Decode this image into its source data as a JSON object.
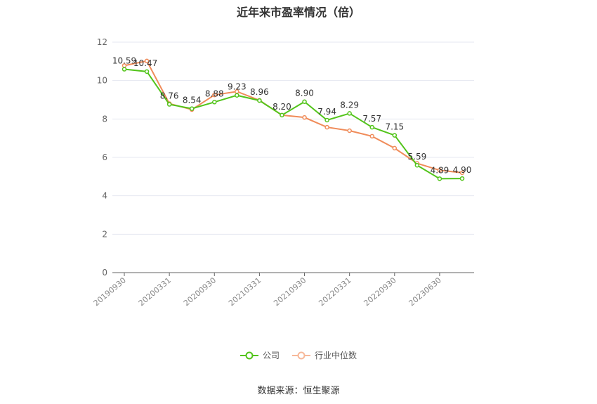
{
  "chart_data": {
    "type": "line",
    "title": "近年来市盈率情况（倍）",
    "ylim": [
      0,
      12
    ],
    "y_ticks": [
      0,
      2,
      4,
      6,
      8,
      10,
      12
    ],
    "x_tick_labels": [
      "20190930",
      "20200331",
      "20200930",
      "20210331",
      "20210930",
      "20220331",
      "20220930",
      "20230630"
    ],
    "grid": true,
    "legend_position": "bottom",
    "series": [
      {
        "name": "公司",
        "color": "#52c41a",
        "values": [
          10.59,
          10.47,
          8.76,
          8.54,
          8.88,
          9.23,
          8.96,
          8.2,
          8.9,
          7.94,
          8.29,
          7.57,
          7.15,
          5.59,
          4.89,
          4.9
        ],
        "labels": [
          "10.59",
          "10.47",
          "8.76",
          "8.54",
          "8.88",
          "9.23",
          "8.96",
          "8.20",
          "8.90",
          "7.94",
          "8.29",
          "7.57",
          "7.15",
          "5.59",
          "4.89",
          "4.90"
        ]
      },
      {
        "name": "行业中位数",
        "color": "#f08c5a",
        "values": [
          10.78,
          11.02,
          8.8,
          8.49,
          9.25,
          9.43,
          8.97,
          8.2,
          8.08,
          7.57,
          7.39,
          7.1,
          6.48,
          5.69,
          5.33,
          5.2
        ]
      }
    ]
  },
  "legend": {
    "company": "公司",
    "industry": "行业中位数"
  },
  "source": "数据来源：恒生聚源"
}
